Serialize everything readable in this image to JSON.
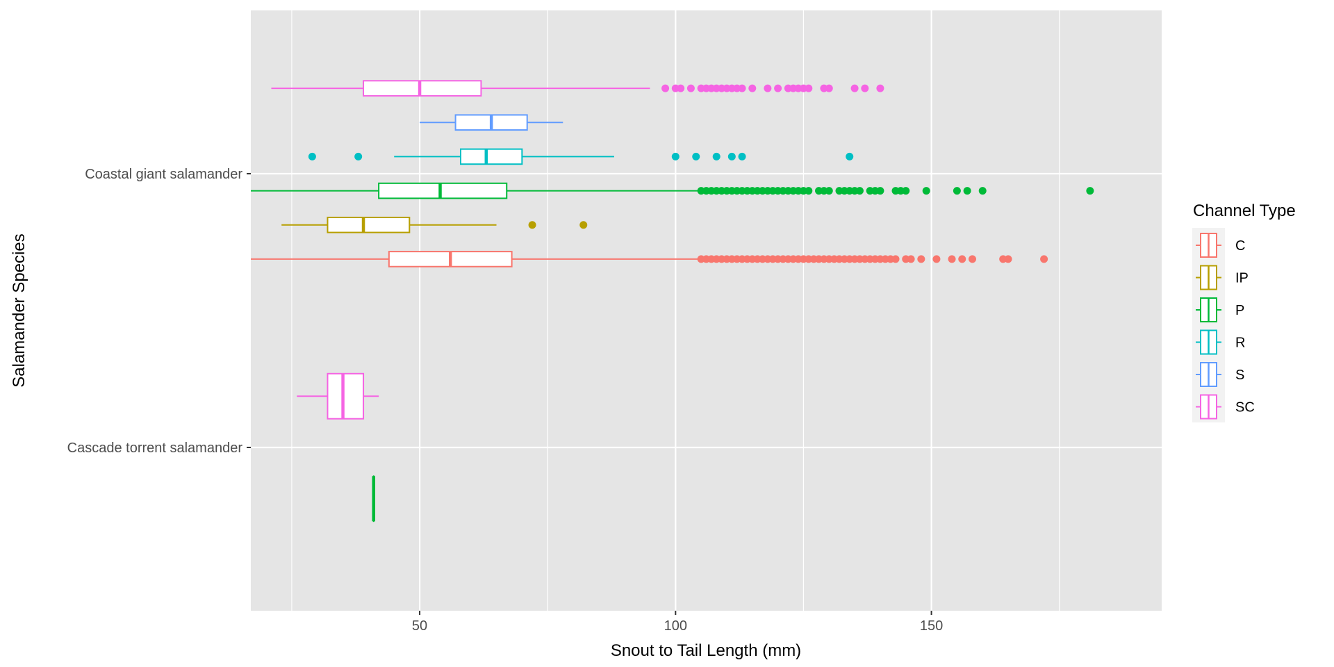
{
  "chart_data": {
    "type": "boxplot",
    "orientation": "horizontal",
    "xlabel": "Snout to Tail Length (mm)",
    "ylabel": "Salamander Species",
    "xlim": [
      17,
      195
    ],
    "x_ticks": [
      50,
      100,
      150
    ],
    "categories": [
      "Coastal giant salamander",
      "Cascade torrent salamander"
    ],
    "legend": {
      "title": "Channel Type",
      "position": "right",
      "entries": [
        "C",
        "IP",
        "P",
        "R",
        "S",
        "SC"
      ]
    },
    "grid": true,
    "background_color": "#e5e5e5",
    "colors": {
      "C": "#f8766d",
      "IP": "#b79f00",
      "P": "#00ba38",
      "R": "#00bfc4",
      "S": "#619cff",
      "SC": "#f564e3"
    },
    "series": [
      {
        "name": "SC",
        "category": "Coastal giant salamander",
        "slot": 0,
        "n": 6,
        "min": 21,
        "q1": 39,
        "median": 50,
        "q3": 62,
        "max": 95,
        "outliers": [
          98,
          100,
          101,
          103,
          105,
          106,
          107,
          108,
          109,
          110,
          111,
          112,
          113,
          115,
          118,
          120,
          122,
          123,
          124,
          125,
          126,
          129,
          130,
          135,
          137,
          140
        ]
      },
      {
        "name": "S",
        "category": "Coastal giant salamander",
        "slot": 1,
        "n": 6,
        "min": 50,
        "q1": 57,
        "median": 64,
        "q3": 71,
        "max": 78,
        "outliers": []
      },
      {
        "name": "R",
        "category": "Coastal giant salamander",
        "slot": 2,
        "n": 6,
        "min": 45,
        "q1": 58,
        "median": 63,
        "q3": 70,
        "max": 88,
        "outliers": [
          29,
          38,
          100,
          104,
          108,
          111,
          113,
          134
        ]
      },
      {
        "name": "P",
        "category": "Coastal giant salamander",
        "slot": 3,
        "n": 6,
        "min": 17,
        "q1": 42,
        "median": 54,
        "q3": 67,
        "max": 105,
        "outliers": [
          105,
          106,
          107,
          108,
          109,
          110,
          111,
          112,
          113,
          114,
          115,
          116,
          117,
          118,
          119,
          120,
          121,
          122,
          123,
          124,
          125,
          126,
          128,
          129,
          130,
          132,
          133,
          134,
          135,
          136,
          138,
          139,
          140,
          143,
          144,
          145,
          149,
          155,
          157,
          160,
          181
        ]
      },
      {
        "name": "IP",
        "category": "Coastal giant salamander",
        "slot": 4,
        "n": 6,
        "min": 23,
        "q1": 32,
        "median": 39,
        "q3": 48,
        "max": 65,
        "outliers": [
          72,
          82
        ]
      },
      {
        "name": "C",
        "category": "Coastal giant salamander",
        "slot": 5,
        "n": 6,
        "min": 17,
        "q1": 44,
        "median": 56,
        "q3": 68,
        "max": 105,
        "outliers": [
          105,
          106,
          107,
          108,
          109,
          110,
          111,
          112,
          113,
          114,
          115,
          116,
          117,
          118,
          119,
          120,
          121,
          122,
          123,
          124,
          125,
          126,
          127,
          128,
          129,
          130,
          131,
          132,
          133,
          134,
          135,
          136,
          137,
          138,
          139,
          140,
          141,
          142,
          143,
          145,
          146,
          148,
          151,
          154,
          156,
          158,
          164,
          165,
          172
        ]
      },
      {
        "name": "SC",
        "category": "Cascade torrent salamander",
        "slot": 0,
        "n": 2,
        "min": 26,
        "q1": 32,
        "median": 35,
        "q3": 39,
        "max": 42,
        "outliers": []
      },
      {
        "name": "P",
        "category": "Cascade torrent salamander",
        "slot": 1,
        "n": 2,
        "min": 41,
        "q1": 41,
        "median": 41,
        "q3": 41,
        "max": 41,
        "outliers": []
      }
    ]
  }
}
